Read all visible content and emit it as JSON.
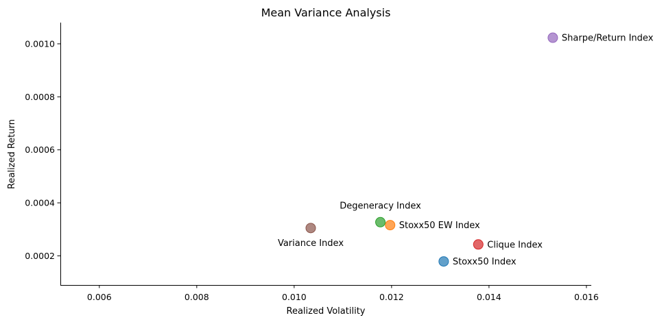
{
  "chart_data": {
    "type": "scatter",
    "title": "Mean Variance Analysis",
    "xlabel": "Realized Volatility",
    "ylabel": "Realized Return",
    "xlim": [
      0.0052,
      0.0161
    ],
    "ylim": [
      9e-05,
      0.00108
    ],
    "xticks": [
      0.006,
      0.008,
      0.01,
      0.012,
      0.014,
      0.016
    ],
    "xtick_labels": [
      "0.006",
      "0.008",
      "0.010",
      "0.012",
      "0.014",
      "0.016"
    ],
    "yticks": [
      0.0002,
      0.0004,
      0.0006,
      0.0008,
      0.001
    ],
    "ytick_labels": [
      "0.0002",
      "0.0004",
      "0.0006",
      "0.0008",
      "0.0010"
    ],
    "grid": false,
    "points": [
      {
        "label": "Stoxx50 Index",
        "x": 0.01307,
        "y": 0.000179,
        "color": "#1f77b4",
        "label_position": "right"
      },
      {
        "label": "Stoxx50 EW Index",
        "x": 0.01197,
        "y": 0.000316,
        "color": "#ff7f0e",
        "label_position": "right"
      },
      {
        "label": "Degeneracy Index",
        "x": 0.01177,
        "y": 0.000327,
        "color": "#2ca02c",
        "label_position": "above"
      },
      {
        "label": "Clique Index",
        "x": 0.01378,
        "y": 0.000243,
        "color": "#d62728",
        "label_position": "right"
      },
      {
        "label": "Sharpe/Return Index",
        "x": 0.01531,
        "y": 0.001023,
        "color": "#9467bd",
        "label_position": "right"
      },
      {
        "label": "Variance Index",
        "x": 0.01034,
        "y": 0.000305,
        "color": "#8c564b",
        "label_position": "below"
      }
    ]
  }
}
